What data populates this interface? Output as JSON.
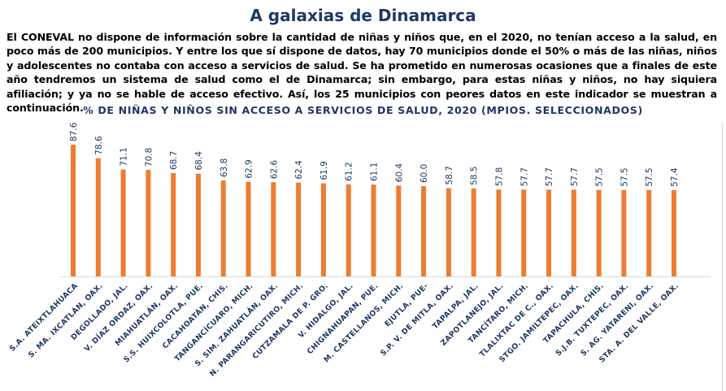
{
  "header": {
    "title": "A galaxias de Dinamarca"
  },
  "intro": "El CONEVAL no dispone de información sobre la cantidad de niñas y niños que, en el 2020, no tenían acceso a la salud, en poco más de 200 municipios. Y entre los que sí dispone de datos, hay 70 municipios donde el 50% o más de las niñas, niños y adolescentes no contaba con acceso a servicios de salud. Se ha prometido en numerosas ocasiones que a finales de este año tendremos un sistema de salud como el de Dinamarca; sin embargo, para estas niñas y niños, no hay siquiera afiliación; y ya no se hable de acceso efectivo. Así, los 25 municipios con peores datos en este indicador se muestran a continuación.",
  "chart_data": {
    "type": "bar",
    "title": "% DE NIÑAS Y NIÑOS SIN ACCESO A SERVICIOS DE SALUD, 2020 (MPIOS. SELECCIONADOS)",
    "xlabel": "",
    "ylabel": "",
    "ylim": [
      0,
      90
    ],
    "grid": false,
    "bar_color": "#ed7d31",
    "label_color": "#1f3864",
    "categories": [
      "S.A. ATEIXTLAHUACA",
      "S. MA. IXCATLÁN, OAX.",
      "DEGOLLADO, JAL.",
      "V. DÍAZ ORDAZ, OAX.",
      "MIAHUATLÁN, OAX.",
      "S.S. HUIXCOLOTLA, PUE.",
      "CACAHOATÁN, CHIS.",
      "TANGANCÍCUARO, MICH.",
      "S. SIM. ZAHUATLÁN, OAX.",
      "N. PARANGARICUTIRO, MICH.",
      "CUTZAMALA DE P. GRO.",
      "V. HIDALGO, JAL.",
      "CHIGNAHUAPAN, PUE.",
      "M. CASTELLANOS, MICH.",
      "EJUTLA, PUE-",
      "S.P. V. DE MITLA, OAX.",
      "TAPALPA, JAL.",
      "ZAPOTLANEJO, JAL.",
      "TANCÍTARO, MICH.",
      "TLALIXTAC DE C., OAX.",
      "STGO. JAMILTEPEC, OAX.",
      "TAPACHULA, CHIS.",
      "S.J.B. TUXTEPEC, OAX.",
      "S. AG. YATARENI, OAX.",
      "STA. A. DEL VALLE, OAX."
    ],
    "values": [
      87.6,
      78.6,
      71.1,
      70.8,
      68.7,
      68.4,
      63.8,
      62.9,
      62.6,
      62.4,
      61.9,
      61.2,
      61.1,
      60.4,
      60.0,
      58.7,
      58.5,
      57.8,
      57.7,
      57.7,
      57.7,
      57.5,
      57.5,
      57.5,
      57.4
    ],
    "value_labels": [
      "87.6",
      "78.6",
      "71.1",
      "70.8",
      "68.7",
      "68.4",
      "63.8",
      "62.9",
      "62.6",
      "62.4",
      "61.9",
      "61.2",
      "61.1",
      "60.4",
      "60.0",
      "58.7",
      "58.5",
      "57.8",
      "57.7",
      "57.7",
      "57.7",
      "57.5",
      "57.5",
      "57.5",
      "57.4"
    ]
  }
}
